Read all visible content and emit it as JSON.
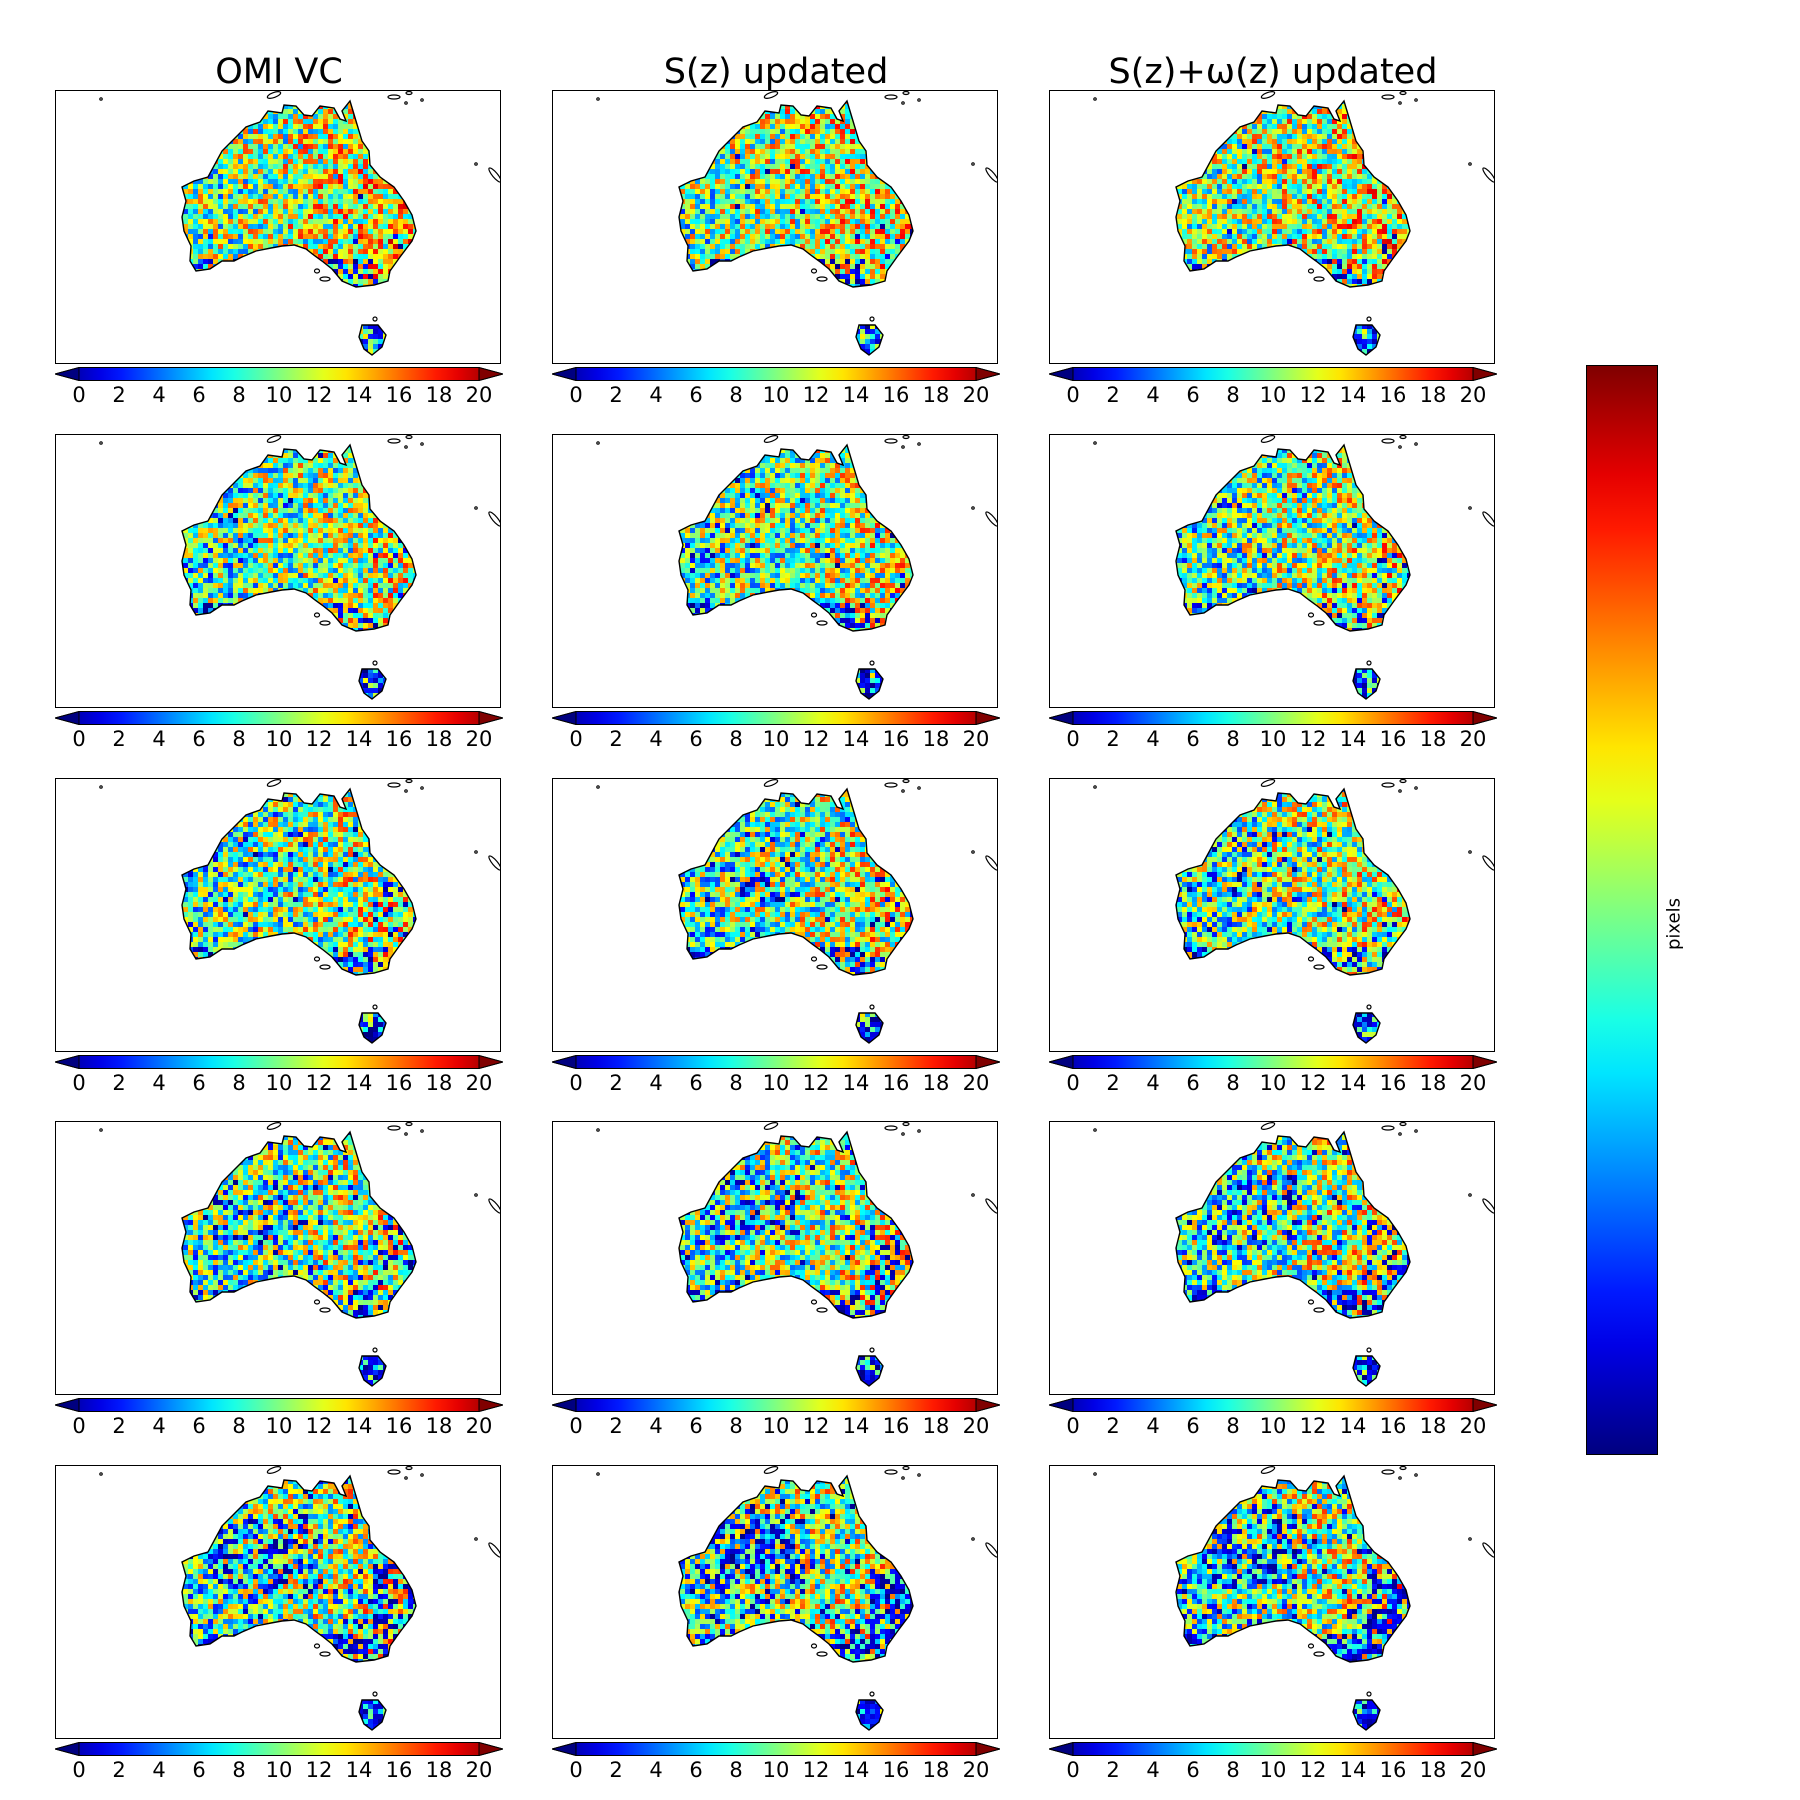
{
  "chart_data": {
    "type": "heatmap",
    "layout": {
      "rows": 5,
      "columns": 3
    },
    "column_titles": [
      "OMI VC",
      "S(z) updated",
      "S(z)+ω(z) updated"
    ],
    "colormap": "jet",
    "colorbar": {
      "ticks": [
        "0",
        "2",
        "4",
        "6",
        "8",
        "10",
        "12",
        "14",
        "16",
        "18",
        "20"
      ],
      "range": [
        0,
        20
      ],
      "extend": "both"
    },
    "shared_colorbar_label": "pixels",
    "region": "Australia",
    "panels": [
      {
        "row": 1,
        "column": 1,
        "typical_value": 11,
        "low_patch_level": 0.05
      },
      {
        "row": 1,
        "column": 2,
        "typical_value": 11,
        "low_patch_level": 0.05
      },
      {
        "row": 1,
        "column": 3,
        "typical_value": 11,
        "low_patch_level": 0.05
      },
      {
        "row": 2,
        "column": 1,
        "typical_value": 10,
        "low_patch_level": 0.1
      },
      {
        "row": 2,
        "column": 2,
        "typical_value": 10,
        "low_patch_level": 0.1
      },
      {
        "row": 2,
        "column": 3,
        "typical_value": 10,
        "low_patch_level": 0.1
      },
      {
        "row": 3,
        "column": 1,
        "typical_value": 10,
        "low_patch_level": 0.15
      },
      {
        "row": 3,
        "column": 2,
        "typical_value": 10,
        "low_patch_level": 0.2
      },
      {
        "row": 3,
        "column": 3,
        "typical_value": 10,
        "low_patch_level": 0.2
      },
      {
        "row": 4,
        "column": 1,
        "typical_value": 10,
        "low_patch_level": 0.45
      },
      {
        "row": 4,
        "column": 2,
        "typical_value": 10,
        "low_patch_level": 0.55
      },
      {
        "row": 4,
        "column": 3,
        "typical_value": 10,
        "low_patch_level": 0.5
      },
      {
        "row": 5,
        "column": 1,
        "typical_value": 10,
        "low_patch_level": 0.85
      },
      {
        "row": 5,
        "column": 2,
        "typical_value": 10,
        "low_patch_level": 0.95
      },
      {
        "row": 5,
        "column": 3,
        "typical_value": 10,
        "low_patch_level": 0.9
      }
    ]
  }
}
